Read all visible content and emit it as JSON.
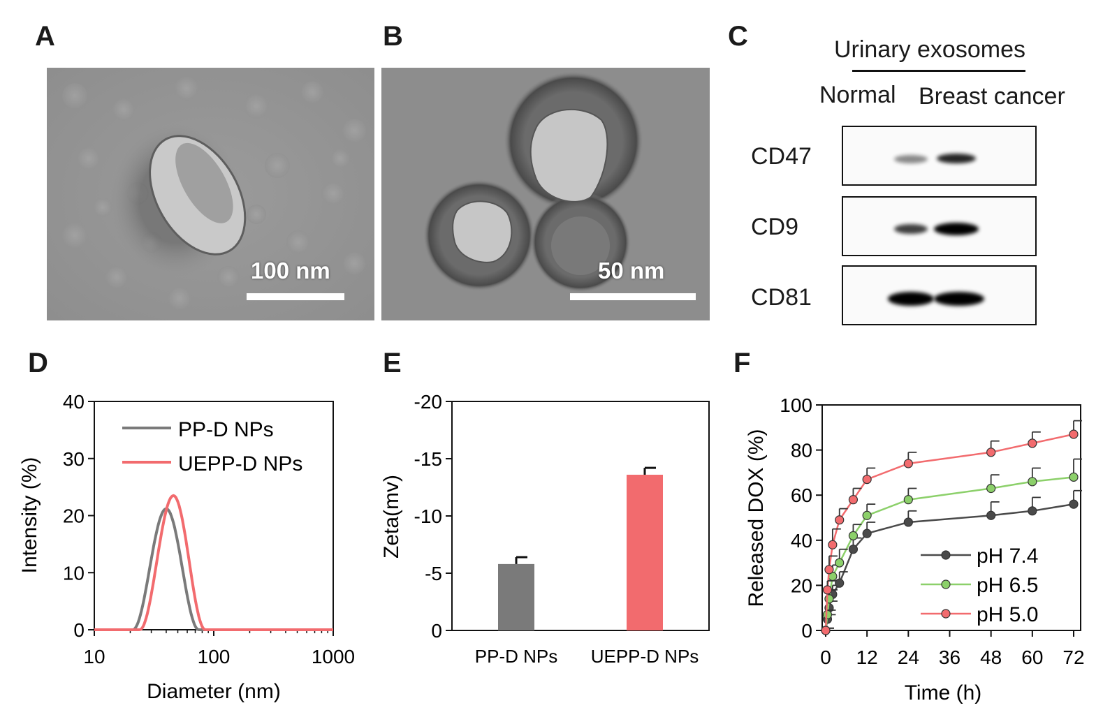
{
  "panels": {
    "A": {
      "letter": "A",
      "scale_label": "100 nm"
    },
    "B": {
      "letter": "B",
      "scale_label": "50 nm"
    },
    "C": {
      "letter": "C",
      "group_label": "Urinary exosomes",
      "columns": [
        "Normal",
        "Breast cancer"
      ],
      "rows": [
        {
          "label": "CD47",
          "bands": [
            0.45,
            0.85
          ]
        },
        {
          "label": "CD9",
          "bands": [
            0.75,
            1.0
          ]
        },
        {
          "label": "CD81",
          "bands": [
            1.0,
            1.0
          ]
        }
      ]
    },
    "D": {
      "letter": "D"
    },
    "E": {
      "letter": "E"
    },
    "F": {
      "letter": "F"
    }
  },
  "colors": {
    "gray_series": "#7a7a7a",
    "pink_series": "#f26b6e",
    "green_series": "#8cd06a",
    "dark_series": "#4a4a4a"
  },
  "chart_data": [
    {
      "id": "D",
      "type": "line",
      "title": "",
      "xlabel": "Diameter (nm)",
      "ylabel": "Intensity (%)",
      "xscale": "log",
      "xlim": [
        10,
        1000
      ],
      "ylim": [
        0,
        40
      ],
      "xticks": [
        "10",
        "100",
        "1000"
      ],
      "yticks": [
        "0",
        "10",
        "20",
        "30",
        "40"
      ],
      "legend_position": "top-left",
      "series": [
        {
          "name": "PP-D NPs",
          "color": "#7a7a7a",
          "peak_x": 40,
          "peak_y": 21.2,
          "range": [
            21,
            75
          ]
        },
        {
          "name": "UEPP-D NPs",
          "color": "#f26b6e",
          "peak_x": 46,
          "peak_y": 23.5,
          "range": [
            24,
            85
          ]
        }
      ]
    },
    {
      "id": "E",
      "type": "bar",
      "title": "",
      "xlabel": "",
      "ylabel": "Zeta(mv)",
      "ylim": [
        0,
        -20
      ],
      "yticks": [
        "0",
        "-5",
        "-10",
        "-15",
        "-20"
      ],
      "categories": [
        "PP-D NPs",
        "UEPP-D NPs"
      ],
      "values": [
        -5.8,
        -13.6
      ],
      "errors": [
        0.6,
        0.6
      ],
      "colors": [
        "#7a7a7a",
        "#f26b6e"
      ]
    },
    {
      "id": "F",
      "type": "line",
      "title": "",
      "xlabel": "Time (h)",
      "ylabel": "Released DOX (%)",
      "xlim": [
        0,
        72
      ],
      "ylim": [
        0,
        100
      ],
      "xticks": [
        "0",
        "12",
        "24",
        "36",
        "48",
        "60",
        "72"
      ],
      "yticks": [
        "0",
        "20",
        "40",
        "60",
        "80",
        "100"
      ],
      "legend_position": "bottom-right",
      "x": [
        0,
        0.5,
        1,
        2,
        4,
        8,
        12,
        24,
        48,
        60,
        72
      ],
      "series": [
        {
          "name": "pH 7.4",
          "color": "#4a4a4a",
          "fill": "#4a4a4a",
          "values": [
            0,
            5,
            10,
            16,
            21,
            36,
            43,
            48,
            51,
            53,
            56
          ],
          "errors": [
            1,
            2,
            3,
            4,
            5,
            5,
            5,
            5,
            6,
            6,
            6
          ]
        },
        {
          "name": "pH 6.5",
          "color": "#8cd06a",
          "fill": "#8cd06a",
          "values": [
            0,
            7,
            14,
            24,
            30,
            42,
            51,
            58,
            63,
            66,
            68
          ],
          "errors": [
            1,
            2,
            4,
            5,
            6,
            5,
            5,
            5,
            6,
            6,
            8
          ]
        },
        {
          "name": "pH 5.0",
          "color": "#f26b6e",
          "fill": "#f26b6e",
          "values": [
            0,
            18,
            27,
            38,
            49,
            58,
            67,
            74,
            79,
            83,
            87
          ],
          "errors": [
            1,
            4,
            6,
            7,
            5,
            5,
            5,
            5,
            5,
            5,
            6
          ]
        }
      ]
    }
  ]
}
